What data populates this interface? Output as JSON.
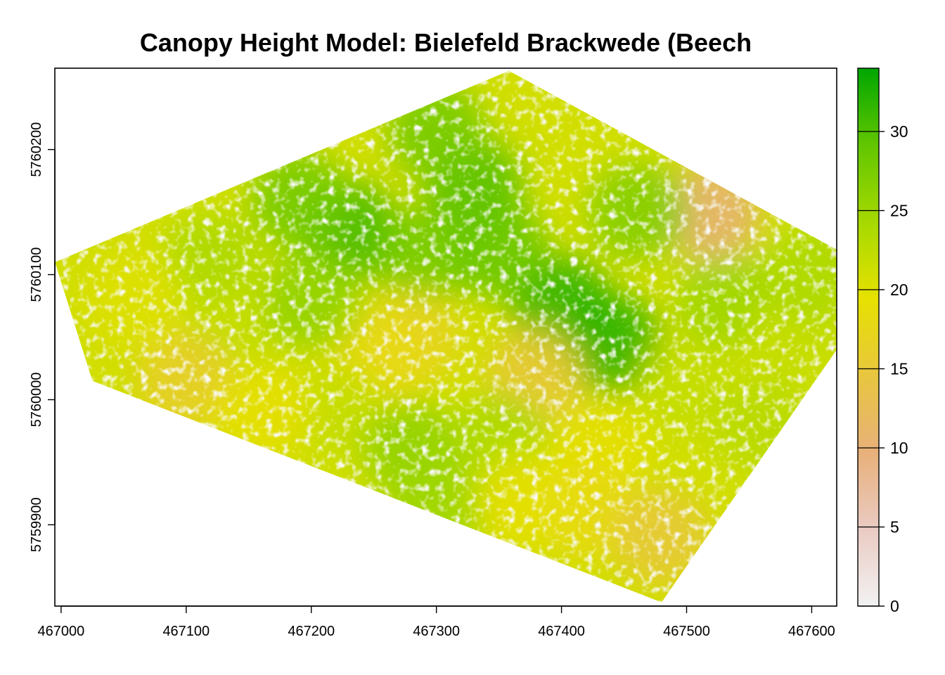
{
  "title": "Canopy Height Model: Bielefeld Brackwede (Beech",
  "colors": {
    "ramp": [
      "#f2f2f2",
      "#eacbc3",
      "#e8b07a",
      "#e8c63f",
      "#e6e100",
      "#a6d900",
      "#62c600",
      "#00a600"
    ],
    "axis": "#000000",
    "background": "#ffffff"
  },
  "chart_data": {
    "type": "heatmap",
    "title": "Canopy Height Model: Bielefeld Brackwede (Beech",
    "xlabel": "",
    "ylabel": "",
    "xlim": [
      466995,
      467620
    ],
    "ylim": [
      5759835,
      5760265
    ],
    "x_ticks": [
      467000,
      467100,
      467200,
      467300,
      467400,
      467500,
      467600
    ],
    "y_ticks": [
      5759900,
      5760000,
      5760100,
      5760200
    ],
    "legend": {
      "placement": "right",
      "range": [
        0,
        34
      ],
      "ticks": [
        0,
        5,
        10,
        15,
        20,
        25,
        30
      ]
    },
    "grid": false,
    "extent_polygon": [
      [
        466995,
        5760110
      ],
      [
        467025,
        5760015
      ],
      [
        467480,
        5759838
      ],
      [
        467620,
        5760040
      ],
      [
        467620,
        5760120
      ],
      [
        467358,
        5760263
      ]
    ],
    "patches": [
      {
        "x": 467230,
        "y": 5760135,
        "value": 31
      },
      {
        "x": 467330,
        "y": 5760170,
        "value": 30
      },
      {
        "x": 467400,
        "y": 5760075,
        "value": 32
      },
      {
        "x": 467440,
        "y": 5760045,
        "value": 32
      },
      {
        "x": 467190,
        "y": 5760160,
        "value": 28
      },
      {
        "x": 467300,
        "y": 5760215,
        "value": 28
      },
      {
        "x": 467290,
        "y": 5760115,
        "value": 28
      },
      {
        "x": 467350,
        "y": 5760120,
        "value": 29
      },
      {
        "x": 467120,
        "y": 5760110,
        "value": 24
      },
      {
        "x": 467140,
        "y": 5760050,
        "value": 22
      },
      {
        "x": 467060,
        "y": 5760080,
        "value": 20
      },
      {
        "x": 467280,
        "y": 5760050,
        "value": 17
      },
      {
        "x": 467380,
        "y": 5760020,
        "value": 15
      },
      {
        "x": 467250,
        "y": 5760030,
        "value": 18
      },
      {
        "x": 467220,
        "y": 5759990,
        "value": 22
      },
      {
        "x": 467280,
        "y": 5759960,
        "value": 26
      },
      {
        "x": 467350,
        "y": 5759965,
        "value": 24
      },
      {
        "x": 467300,
        "y": 5759910,
        "value": 25
      },
      {
        "x": 467430,
        "y": 5759960,
        "value": 19
      },
      {
        "x": 467500,
        "y": 5760010,
        "value": 22
      },
      {
        "x": 467560,
        "y": 5759980,
        "value": 23
      },
      {
        "x": 467530,
        "y": 5760080,
        "value": 25
      },
      {
        "x": 467590,
        "y": 5760050,
        "value": 22
      },
      {
        "x": 467420,
        "y": 5759910,
        "value": 18
      },
      {
        "x": 467480,
        "y": 5759890,
        "value": 15
      },
      {
        "x": 467100,
        "y": 5760015,
        "value": 16
      },
      {
        "x": 467160,
        "y": 5759990,
        "value": 19
      },
      {
        "x": 467200,
        "y": 5760080,
        "value": 26
      },
      {
        "x": 467520,
        "y": 5760150,
        "value": 10
      },
      {
        "x": 467370,
        "y": 5759920,
        "value": 19
      },
      {
        "x": 467600,
        "y": 5760100,
        "value": 24
      },
      {
        "x": 467460,
        "y": 5760150,
        "value": 27
      }
    ]
  }
}
